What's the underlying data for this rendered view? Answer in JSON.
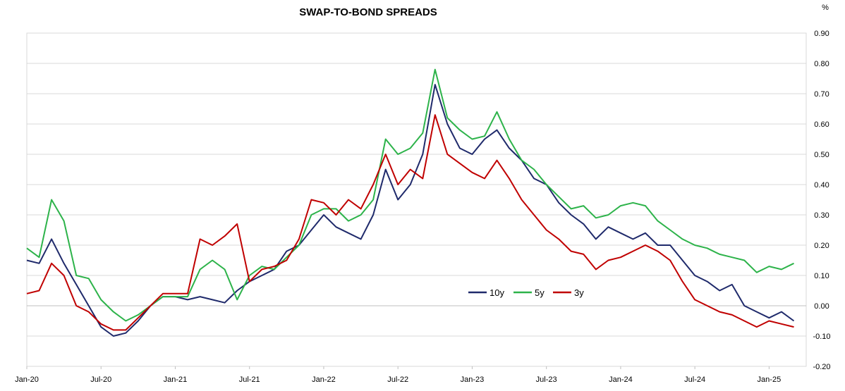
{
  "chart_data": {
    "type": "line",
    "title": "SWAP-TO-BOND SPREADS",
    "unit": "%",
    "ylim": [
      -0.2,
      0.9
    ],
    "y_ticks": [
      "0.90",
      "0.80",
      "0.70",
      "0.60",
      "0.50",
      "0.40",
      "0.30",
      "0.20",
      "0.10",
      "0.00",
      "-0.10",
      "-0.20"
    ],
    "x_ticks": [
      "Jan-20",
      "Jul-20",
      "Jan-21",
      "Jul-21",
      "Jan-22",
      "Jul-22",
      "Jan-23",
      "Jul-23",
      "Jan-24",
      "Jul-24",
      "Jan-25"
    ],
    "grid": "horizontal",
    "legend_position": "center-right",
    "series": [
      {
        "name": "10y",
        "color": "#1F2A6B",
        "points": [
          [
            "2020-01",
            0.15
          ],
          [
            "2020-02",
            0.14
          ],
          [
            "2020-03",
            0.22
          ],
          [
            "2020-04",
            0.14
          ],
          [
            "2020-05",
            0.07
          ],
          [
            "2020-06",
            0.0
          ],
          [
            "2020-07",
            -0.07
          ],
          [
            "2020-08",
            -0.1
          ],
          [
            "2020-09",
            -0.09
          ],
          [
            "2020-10",
            -0.05
          ],
          [
            "2020-11",
            0.0
          ],
          [
            "2020-12",
            0.03
          ],
          [
            "2021-01",
            0.03
          ],
          [
            "2021-02",
            0.02
          ],
          [
            "2021-03",
            0.03
          ],
          [
            "2021-04",
            0.02
          ],
          [
            "2021-05",
            0.01
          ],
          [
            "2021-06",
            0.05
          ],
          [
            "2021-07",
            0.08
          ],
          [
            "2021-08",
            0.1
          ],
          [
            "2021-09",
            0.12
          ],
          [
            "2021-10",
            0.18
          ],
          [
            "2021-11",
            0.2
          ],
          [
            "2021-12",
            0.25
          ],
          [
            "2022-01",
            0.3
          ],
          [
            "2022-02",
            0.26
          ],
          [
            "2022-03",
            0.24
          ],
          [
            "2022-04",
            0.22
          ],
          [
            "2022-05",
            0.3
          ],
          [
            "2022-06",
            0.45
          ],
          [
            "2022-07",
            0.35
          ],
          [
            "2022-08",
            0.4
          ],
          [
            "2022-09",
            0.5
          ],
          [
            "2022-10",
            0.73
          ],
          [
            "2022-11",
            0.6
          ],
          [
            "2022-12",
            0.52
          ],
          [
            "2023-01",
            0.5
          ],
          [
            "2023-02",
            0.55
          ],
          [
            "2023-03",
            0.58
          ],
          [
            "2023-04",
            0.52
          ],
          [
            "2023-05",
            0.48
          ],
          [
            "2023-06",
            0.42
          ],
          [
            "2023-07",
            0.4
          ],
          [
            "2023-08",
            0.34
          ],
          [
            "2023-09",
            0.3
          ],
          [
            "2023-10",
            0.27
          ],
          [
            "2023-11",
            0.22
          ],
          [
            "2023-12",
            0.26
          ],
          [
            "2024-01",
            0.24
          ],
          [
            "2024-02",
            0.22
          ],
          [
            "2024-03",
            0.24
          ],
          [
            "2024-04",
            0.2
          ],
          [
            "2024-05",
            0.2
          ],
          [
            "2024-06",
            0.15
          ],
          [
            "2024-07",
            0.1
          ],
          [
            "2024-08",
            0.08
          ],
          [
            "2024-09",
            0.05
          ],
          [
            "2024-10",
            0.07
          ],
          [
            "2024-11",
            0.0
          ],
          [
            "2024-12",
            -0.02
          ],
          [
            "2025-01",
            -0.04
          ],
          [
            "2025-02",
            -0.02
          ],
          [
            "2025-03",
            -0.05
          ]
        ]
      },
      {
        "name": "5y",
        "color": "#2DB34A",
        "points": [
          [
            "2020-01",
            0.19
          ],
          [
            "2020-02",
            0.16
          ],
          [
            "2020-03",
            0.35
          ],
          [
            "2020-04",
            0.28
          ],
          [
            "2020-05",
            0.1
          ],
          [
            "2020-06",
            0.09
          ],
          [
            "2020-07",
            0.02
          ],
          [
            "2020-08",
            -0.02
          ],
          [
            "2020-09",
            -0.05
          ],
          [
            "2020-10",
            -0.03
          ],
          [
            "2020-11",
            0.0
          ],
          [
            "2020-12",
            0.03
          ],
          [
            "2021-01",
            0.03
          ],
          [
            "2021-02",
            0.03
          ],
          [
            "2021-03",
            0.12
          ],
          [
            "2021-04",
            0.15
          ],
          [
            "2021-05",
            0.12
          ],
          [
            "2021-06",
            0.02
          ],
          [
            "2021-07",
            0.1
          ],
          [
            "2021-08",
            0.13
          ],
          [
            "2021-09",
            0.12
          ],
          [
            "2021-10",
            0.16
          ],
          [
            "2021-11",
            0.2
          ],
          [
            "2021-12",
            0.3
          ],
          [
            "2022-01",
            0.32
          ],
          [
            "2022-02",
            0.32
          ],
          [
            "2022-03",
            0.28
          ],
          [
            "2022-04",
            0.3
          ],
          [
            "2022-05",
            0.35
          ],
          [
            "2022-06",
            0.55
          ],
          [
            "2022-07",
            0.5
          ],
          [
            "2022-08",
            0.52
          ],
          [
            "2022-09",
            0.57
          ],
          [
            "2022-10",
            0.78
          ],
          [
            "2022-11",
            0.62
          ],
          [
            "2022-12",
            0.58
          ],
          [
            "2023-01",
            0.55
          ],
          [
            "2023-02",
            0.56
          ],
          [
            "2023-03",
            0.64
          ],
          [
            "2023-04",
            0.55
          ],
          [
            "2023-05",
            0.48
          ],
          [
            "2023-06",
            0.45
          ],
          [
            "2023-07",
            0.4
          ],
          [
            "2023-08",
            0.36
          ],
          [
            "2023-09",
            0.32
          ],
          [
            "2023-10",
            0.33
          ],
          [
            "2023-11",
            0.29
          ],
          [
            "2023-12",
            0.3
          ],
          [
            "2024-01",
            0.33
          ],
          [
            "2024-02",
            0.34
          ],
          [
            "2024-03",
            0.33
          ],
          [
            "2024-04",
            0.28
          ],
          [
            "2024-05",
            0.25
          ],
          [
            "2024-06",
            0.22
          ],
          [
            "2024-07",
            0.2
          ],
          [
            "2024-08",
            0.19
          ],
          [
            "2024-09",
            0.17
          ],
          [
            "2024-10",
            0.16
          ],
          [
            "2024-11",
            0.15
          ],
          [
            "2024-12",
            0.11
          ],
          [
            "2025-01",
            0.13
          ],
          [
            "2025-02",
            0.12
          ],
          [
            "2025-03",
            0.14
          ]
        ]
      },
      {
        "name": "3y",
        "color": "#C00000",
        "points": [
          [
            "2020-01",
            0.04
          ],
          [
            "2020-02",
            0.05
          ],
          [
            "2020-03",
            0.14
          ],
          [
            "2020-04",
            0.1
          ],
          [
            "2020-05",
            0.0
          ],
          [
            "2020-06",
            -0.02
          ],
          [
            "2020-07",
            -0.06
          ],
          [
            "2020-08",
            -0.08
          ],
          [
            "2020-09",
            -0.08
          ],
          [
            "2020-10",
            -0.04
          ],
          [
            "2020-11",
            0.0
          ],
          [
            "2020-12",
            0.04
          ],
          [
            "2021-01",
            0.04
          ],
          [
            "2021-02",
            0.04
          ],
          [
            "2021-03",
            0.22
          ],
          [
            "2021-04",
            0.2
          ],
          [
            "2021-05",
            0.23
          ],
          [
            "2021-06",
            0.27
          ],
          [
            "2021-07",
            0.08
          ],
          [
            "2021-08",
            0.12
          ],
          [
            "2021-09",
            0.13
          ],
          [
            "2021-10",
            0.15
          ],
          [
            "2021-11",
            0.22
          ],
          [
            "2021-12",
            0.35
          ],
          [
            "2022-01",
            0.34
          ],
          [
            "2022-02",
            0.3
          ],
          [
            "2022-03",
            0.35
          ],
          [
            "2022-04",
            0.32
          ],
          [
            "2022-05",
            0.4
          ],
          [
            "2022-06",
            0.5
          ],
          [
            "2022-07",
            0.4
          ],
          [
            "2022-08",
            0.45
          ],
          [
            "2022-09",
            0.42
          ],
          [
            "2022-10",
            0.63
          ],
          [
            "2022-11",
            0.5
          ],
          [
            "2022-12",
            0.47
          ],
          [
            "2023-01",
            0.44
          ],
          [
            "2023-02",
            0.42
          ],
          [
            "2023-03",
            0.48
          ],
          [
            "2023-04",
            0.42
          ],
          [
            "2023-05",
            0.35
          ],
          [
            "2023-06",
            0.3
          ],
          [
            "2023-07",
            0.25
          ],
          [
            "2023-08",
            0.22
          ],
          [
            "2023-09",
            0.18
          ],
          [
            "2023-10",
            0.17
          ],
          [
            "2023-11",
            0.12
          ],
          [
            "2023-12",
            0.15
          ],
          [
            "2024-01",
            0.16
          ],
          [
            "2024-02",
            0.18
          ],
          [
            "2024-03",
            0.2
          ],
          [
            "2024-04",
            0.18
          ],
          [
            "2024-05",
            0.15
          ],
          [
            "2024-06",
            0.08
          ],
          [
            "2024-07",
            0.02
          ],
          [
            "2024-08",
            0.0
          ],
          [
            "2024-09",
            -0.02
          ],
          [
            "2024-10",
            -0.03
          ],
          [
            "2024-11",
            -0.05
          ],
          [
            "2024-12",
            -0.07
          ],
          [
            "2025-01",
            -0.05
          ],
          [
            "2025-02",
            -0.06
          ],
          [
            "2025-03",
            -0.07
          ]
        ]
      }
    ]
  }
}
